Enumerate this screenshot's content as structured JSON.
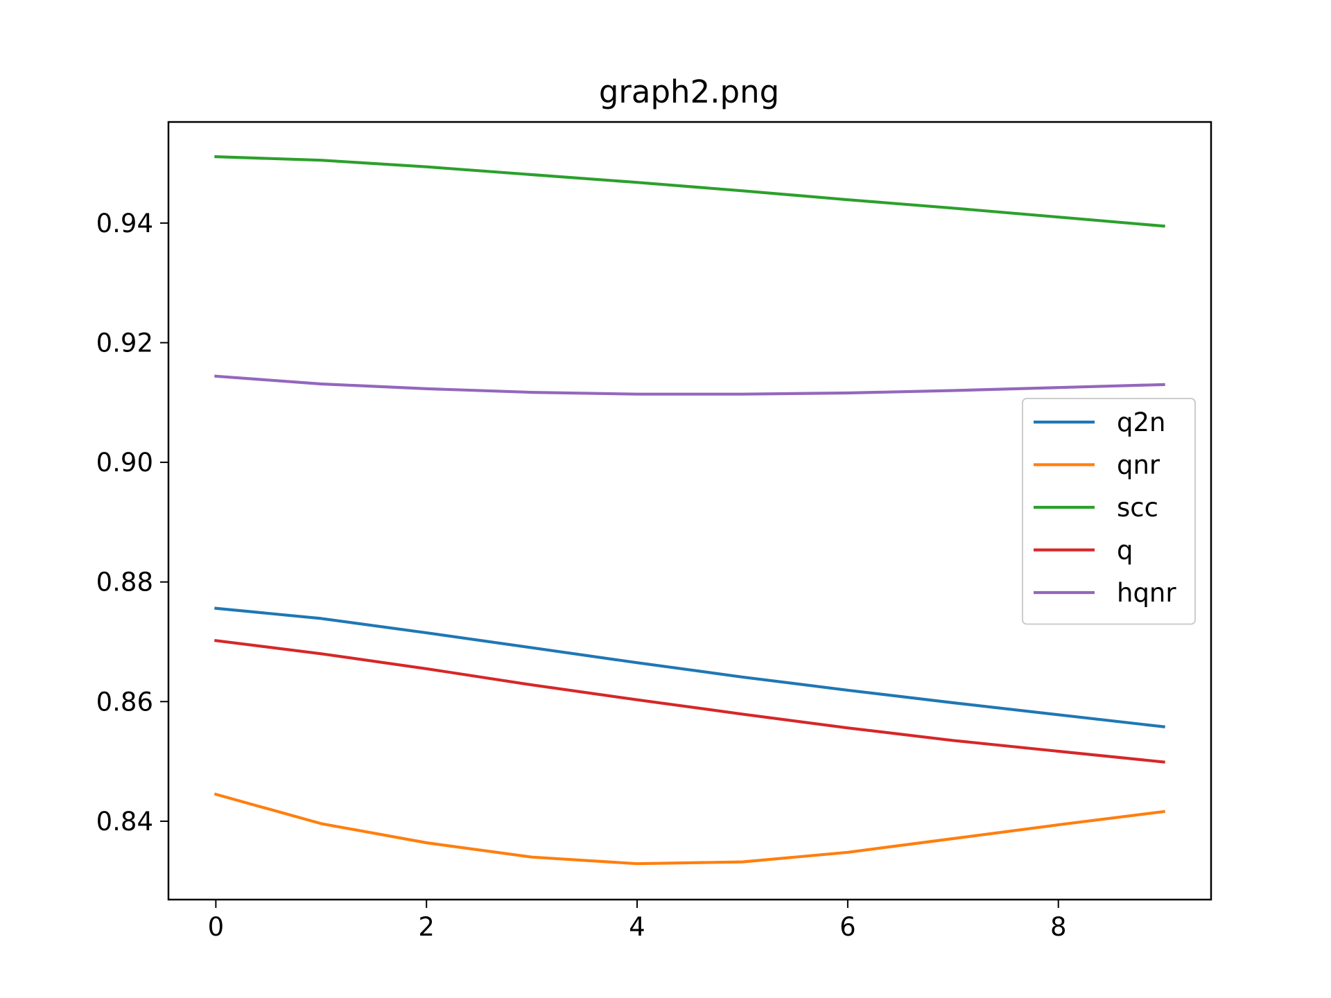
{
  "chart_data": {
    "type": "line",
    "title": "graph2.png",
    "xlabel": "",
    "ylabel": "",
    "x": [
      0,
      1,
      2,
      3,
      4,
      5,
      6,
      7,
      8,
      9
    ],
    "xlim": [
      -0.45,
      9.45
    ],
    "ylim": [
      0.8269,
      0.9569
    ],
    "xticks": [
      0,
      2,
      4,
      6,
      8
    ],
    "xtick_labels": [
      "0",
      "2",
      "4",
      "6",
      "8"
    ],
    "yticks": [
      0.84,
      0.86,
      0.88,
      0.9,
      0.92,
      0.94
    ],
    "ytick_labels": [
      "0.84",
      "0.86",
      "0.88",
      "0.90",
      "0.92",
      "0.94"
    ],
    "grid": false,
    "legend_position": "center-right",
    "series": [
      {
        "name": "q2n",
        "color": "#1f77b4",
        "values": [
          0.8756,
          0.8739,
          0.8715,
          0.869,
          0.8665,
          0.8641,
          0.8619,
          0.8598,
          0.8578,
          0.8558
        ]
      },
      {
        "name": "qnr",
        "color": "#ff7f0e",
        "values": [
          0.8445,
          0.8396,
          0.8364,
          0.834,
          0.8329,
          0.8332,
          0.8348,
          0.8371,
          0.8394,
          0.8416
        ]
      },
      {
        "name": "scc",
        "color": "#2ca02c",
        "values": [
          0.9511,
          0.9505,
          0.9494,
          0.9481,
          0.9468,
          0.9454,
          0.9439,
          0.9425,
          0.941,
          0.9395
        ]
      },
      {
        "name": "q",
        "color": "#d62728",
        "values": [
          0.8702,
          0.868,
          0.8655,
          0.8628,
          0.8603,
          0.8579,
          0.8556,
          0.8535,
          0.8517,
          0.8499
        ]
      },
      {
        "name": "hqnr",
        "color": "#9467bd",
        "values": [
          0.9144,
          0.9131,
          0.9123,
          0.9117,
          0.9114,
          0.9114,
          0.9116,
          0.912,
          0.9125,
          0.913
        ]
      }
    ]
  }
}
